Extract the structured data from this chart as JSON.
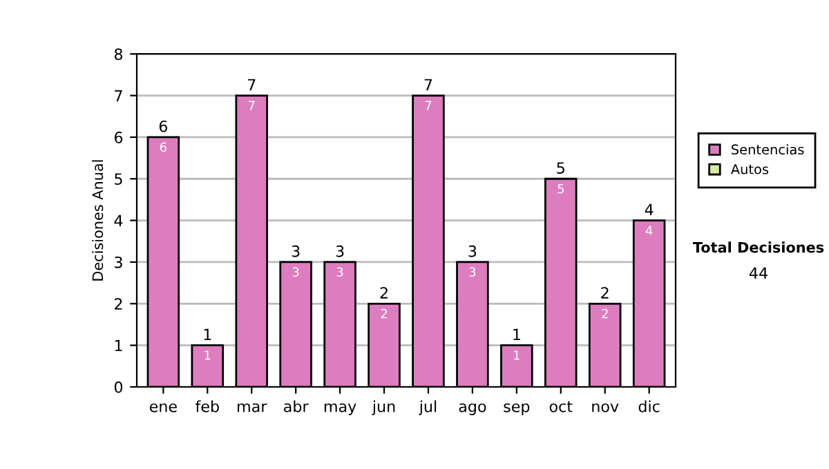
{
  "chart_data": {
    "type": "bar",
    "ylabel": "Decisiones Anual",
    "categories": [
      "ene",
      "feb",
      "mar",
      "abr",
      "may",
      "jun",
      "jul",
      "ago",
      "sep",
      "oct",
      "nov",
      "dic"
    ],
    "series": [
      {
        "name": "Sentencias",
        "color": "#dd7dbf",
        "values": [
          6,
          1,
          7,
          3,
          3,
          2,
          7,
          3,
          1,
          5,
          2,
          4
        ],
        "value_labels": [
          "6",
          "1",
          "7",
          "3",
          "3",
          "2",
          "7",
          "3",
          "1",
          "5",
          "2",
          "4"
        ]
      },
      {
        "name": "Autos",
        "color": "#d8eca0",
        "values": [
          0,
          0,
          0,
          0,
          0,
          0,
          0,
          0,
          0,
          0,
          0,
          0
        ]
      }
    ],
    "stacked": true,
    "totals": [
      "6",
      "1",
      "7",
      "3",
      "3",
      "2",
      "7",
      "3",
      "1",
      "5",
      "2",
      "4"
    ],
    "ylim": [
      0,
      8
    ],
    "yticks": [
      0,
      1,
      2,
      3,
      4,
      5,
      6,
      7,
      8
    ],
    "grid": "y",
    "legend": "right",
    "annotations": [
      "Total Decisiones",
      "44"
    ]
  }
}
